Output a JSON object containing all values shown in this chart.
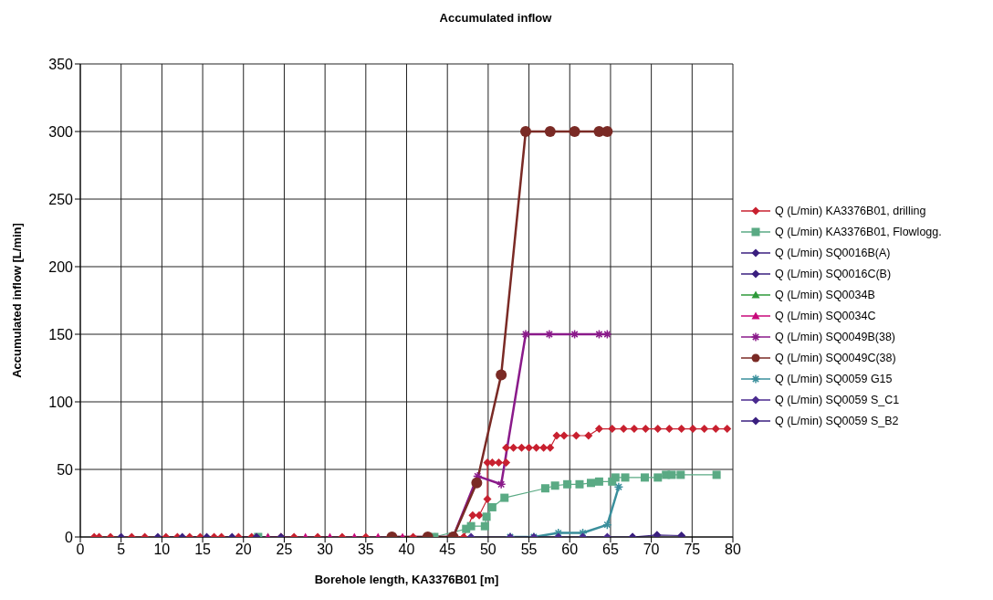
{
  "chart_data": {
    "type": "line",
    "title": "Accumulated inflow",
    "xlabel": "Borehole length, KA3376B01 [m]",
    "ylabel": "Accumulated inflow [L/min]",
    "xlim": [
      0,
      80
    ],
    "xticks": [
      0,
      5,
      10,
      15,
      20,
      25,
      30,
      35,
      40,
      45,
      50,
      55,
      60,
      65,
      70,
      75,
      80
    ],
    "ylim": [
      0,
      350
    ],
    "yticks": [
      0,
      50,
      100,
      150,
      200,
      250,
      300,
      350
    ],
    "grid": true,
    "legend": "right",
    "series": [
      {
        "name": "Q (L/min) KA3376B01, drilling",
        "color": "#c8202f",
        "marker": "diamond",
        "x": [
          1.7,
          2.3,
          3.7,
          6.3,
          7.9,
          10.5,
          11.9,
          13.4,
          14.7,
          16.4,
          17.3,
          19.4,
          21.0,
          24.6,
          26.2,
          29.1,
          32.1,
          35.0,
          38.0,
          40.8,
          43.5,
          46.0,
          47.0,
          48.1,
          48.9,
          49.9,
          49.9,
          50.5,
          51.3,
          52.2,
          52.2,
          53.1,
          54.1,
          55.0,
          55.9,
          56.8,
          57.6,
          58.4,
          59.3,
          60.8,
          62.3,
          63.6,
          65.2,
          66.6,
          67.9,
          69.3,
          70.8,
          72.2,
          73.7,
          75.1,
          76.5,
          77.9,
          79.3
        ],
        "values": [
          0,
          0,
          0,
          0,
          0,
          0,
          0,
          0,
          0,
          0,
          0,
          0,
          0,
          0,
          0,
          0,
          0,
          0,
          0,
          0,
          0,
          0,
          0,
          16,
          16,
          28,
          55,
          55,
          55,
          55,
          66,
          66,
          66,
          66,
          66,
          66,
          66,
          75,
          75,
          75,
          75,
          80,
          80,
          80,
          80,
          80,
          80,
          80,
          80,
          80,
          80,
          80,
          80
        ]
      },
      {
        "name": "Q (L/min) KA3376B01, Flowlogg.",
        "color": "#5aaa84",
        "marker": "square",
        "x": [
          21.8,
          43.4,
          47.3,
          47.9,
          49.6,
          49.8,
          50.5,
          52.0,
          57.0,
          58.2,
          59.7,
          61.2,
          62.6,
          63.6,
          65.2,
          65.6,
          66.8,
          69.2,
          70.8,
          71.8,
          72.5,
          73.6,
          78.0
        ],
        "values": [
          0,
          0,
          6,
          8,
          8,
          15,
          22,
          29,
          36,
          38,
          39,
          39,
          40,
          41,
          41,
          44,
          44,
          44,
          44,
          46,
          46,
          46,
          46
        ]
      },
      {
        "name": "Q (L/min) SQ0016B(A)",
        "color": "#3a1f7f",
        "marker": "diamond",
        "x": [
          5
        ],
        "values": [
          0
        ]
      },
      {
        "name": "Q (L/min) SQ0016C(B)",
        "color": "#3a1f7f",
        "marker": "diamond",
        "x": [
          9.5,
          12.5,
          15.5,
          18.6,
          21.6,
          24.6
        ],
        "values": [
          0,
          0,
          0,
          0,
          0,
          0
        ]
      },
      {
        "name": "Q (L/min) SQ0034B",
        "color": "#2e9a3a",
        "marker": "triangle",
        "x": [
          23.0
        ],
        "values": [
          0
        ]
      },
      {
        "name": "Q (L/min) SQ0034C",
        "color": "#c8087a",
        "marker": "triangle",
        "x": [
          23.0,
          27.6,
          30.6,
          33.6,
          36.5,
          39.5
        ],
        "values": [
          0,
          0,
          0,
          0,
          0,
          0
        ]
      },
      {
        "name": "Q (L/min) SQ0049B(38)",
        "color": "#8a1a8a",
        "marker": "cross",
        "x": [
          38.2,
          42.6,
          45.7,
          48.7,
          51.6,
          54.6,
          57.5,
          60.6,
          63.6,
          64.6
        ],
        "values": [
          0,
          0,
          0,
          45,
          39,
          150,
          150,
          150,
          150,
          150
        ]
      },
      {
        "name": "Q (L/min) SQ0049C(38)",
        "color": "#7a2a25",
        "marker": "circle",
        "x": [
          38.2,
          42.6,
          45.7,
          48.6,
          51.6,
          54.6,
          57.6,
          60.6,
          63.6,
          64.6
        ],
        "values": [
          0,
          0,
          0,
          40,
          120,
          300,
          300,
          300,
          300,
          300
        ]
      },
      {
        "name": "Q (L/min) SQ0059 G15",
        "color": "#3a8f9c",
        "marker": "cross",
        "x": [
          52.7,
          55.6,
          58.6,
          61.6,
          64.6,
          66.0
        ],
        "values": [
          0,
          0,
          3,
          3,
          9,
          37
        ]
      },
      {
        "name": "Q (L/min) SQ0059 S_C1",
        "color": "#4a2a8f",
        "marker": "diamond",
        "x": [
          47.9,
          52.7,
          55.6,
          58.6,
          61.6,
          64.6,
          67.7
        ],
        "values": [
          0,
          0,
          0,
          0,
          0,
          0,
          0
        ]
      },
      {
        "name": "Q (L/min) SQ0059 S_B2",
        "color": "#3a1f7f",
        "marker": "diamond",
        "x": [
          67.7,
          70.7,
          73.7
        ],
        "values": [
          0,
          1.5,
          1
        ]
      }
    ]
  }
}
